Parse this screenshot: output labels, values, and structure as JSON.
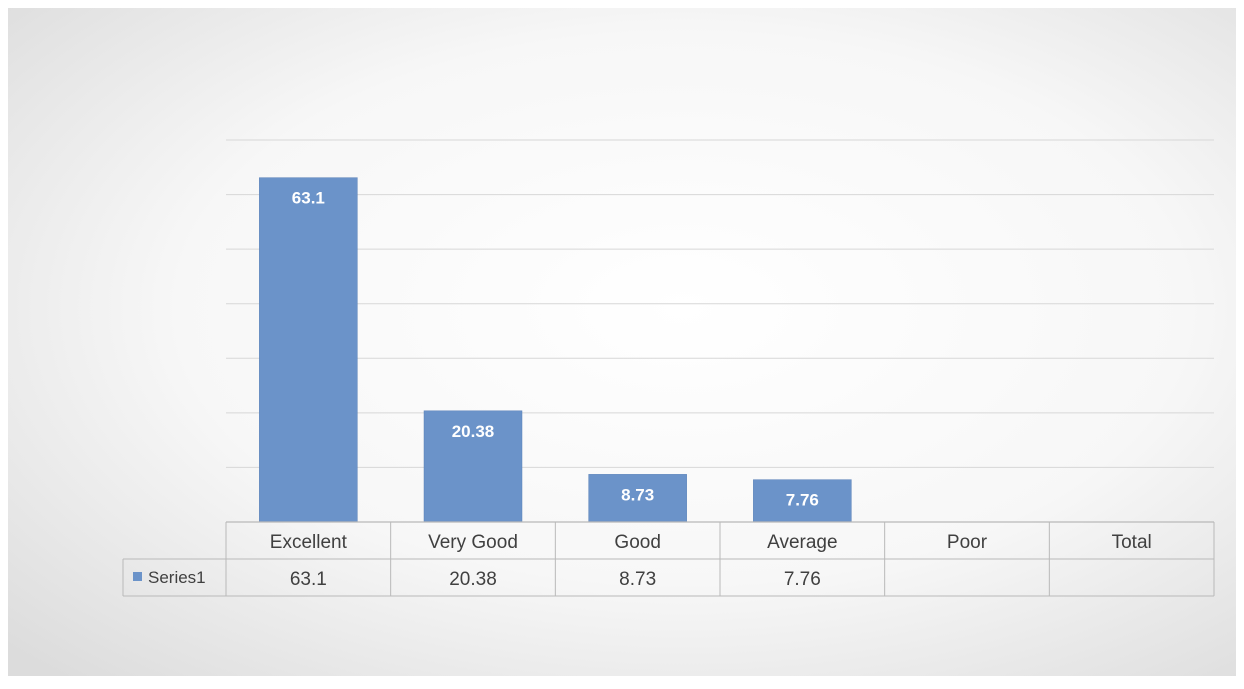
{
  "chart_data": {
    "type": "bar",
    "categories": [
      "Excellent",
      "Very Good",
      "Good",
      "Average",
      "Poor",
      "Total"
    ],
    "series": [
      {
        "name": "Series1",
        "values": [
          63.1,
          20.38,
          8.73,
          7.76,
          null,
          null
        ]
      }
    ],
    "ylim": [
      0,
      70
    ],
    "grid": true,
    "data_table": true,
    "legend": "data-table-left",
    "colors": {
      "bar": "#6b93c9",
      "bar_stroke": "#5b82b8",
      "grid": "#d7d7d7",
      "table_border": "#b9b9b9",
      "text": "#404040",
      "label_text": "#ffffff"
    }
  }
}
